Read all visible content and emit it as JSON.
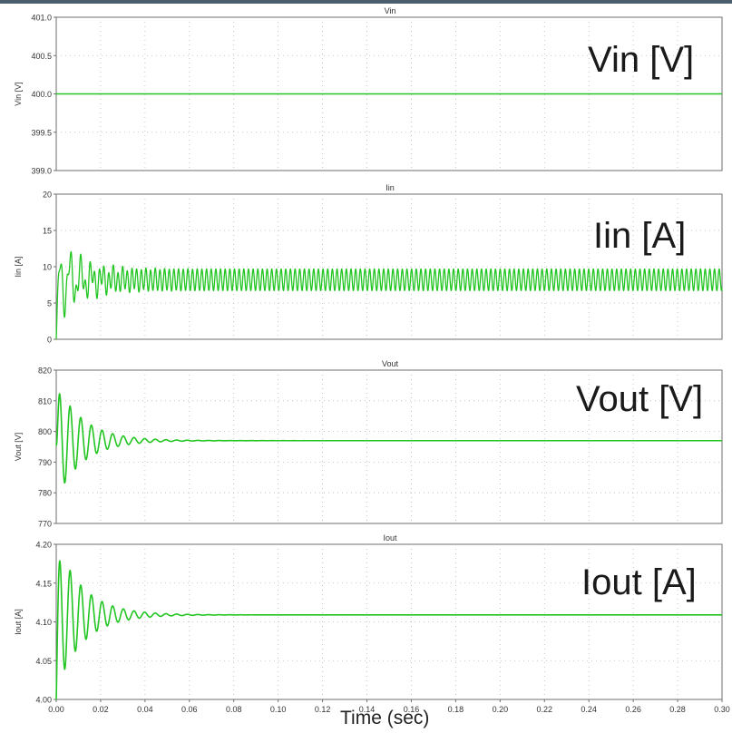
{
  "colors": {
    "line": "#22c522",
    "grid": "#b9b9b9",
    "axis": "#6e6e6e",
    "text": "#333333"
  },
  "chart_data": [
    {
      "type": "line",
      "title": "Vin",
      "ylabel": "Vin [V]",
      "annotation": "Vin [V]",
      "ylim": [
        399.0,
        401.0
      ],
      "yticks": [
        "401.0",
        "400.5",
        "400.0",
        "399.5",
        "399.0"
      ],
      "signal": {
        "kind": "constant",
        "value": 400.0
      }
    },
    {
      "type": "line",
      "title": "Iin",
      "ylabel": "Iin [A]",
      "annotation": "Iin [A]",
      "ylim": [
        0,
        20
      ],
      "yticks": [
        "20",
        "15",
        "10",
        "5",
        "0"
      ],
      "signal": {
        "kind": "damped_switching",
        "steady_mean": 8.2,
        "steady_ripple": 1.5,
        "initial": 0,
        "peak_first": 15.2,
        "trough_first": 2.0,
        "osc_period_sec": 0.0048,
        "settle_tau_sec": 0.012
      }
    },
    {
      "type": "line",
      "title": "Vout",
      "ylabel": "Vout [V]",
      "annotation": "Vout [V]",
      "ylim": [
        770,
        820
      ],
      "yticks": [
        "820",
        "810",
        "800",
        "790",
        "780",
        "770"
      ],
      "signal": {
        "kind": "damped",
        "steady": 797.0,
        "initial": 796.0,
        "peak_first": 814.0,
        "trough_first": 776.0,
        "osc_period_sec": 0.0048,
        "settle_tau_sec": 0.012
      }
    },
    {
      "type": "line",
      "title": "Iout",
      "ylabel": "Iout [A]",
      "annotation": "Iout [A]",
      "ylim": [
        4.0,
        4.2
      ],
      "yticks": [
        "4.20",
        "4.15",
        "4.10",
        "4.05",
        "4.00"
      ],
      "signal": {
        "kind": "damped",
        "steady": 4.109,
        "initial": 4.0,
        "peak_first": 4.198,
        "trough_first": 4.005,
        "osc_period_sec": 0.0048,
        "settle_tau_sec": 0.012
      }
    }
  ],
  "x_axis": {
    "xlim": [
      0.0,
      0.3
    ],
    "ticks": [
      "0.00",
      "0.02",
      "0.04",
      "0.06",
      "0.08",
      "0.10",
      "0.12",
      "0.14",
      "0.16",
      "0.18",
      "0.20",
      "0.22",
      "0.24",
      "0.26",
      "0.28",
      "0.30"
    ],
    "label": "Time (sec)"
  }
}
